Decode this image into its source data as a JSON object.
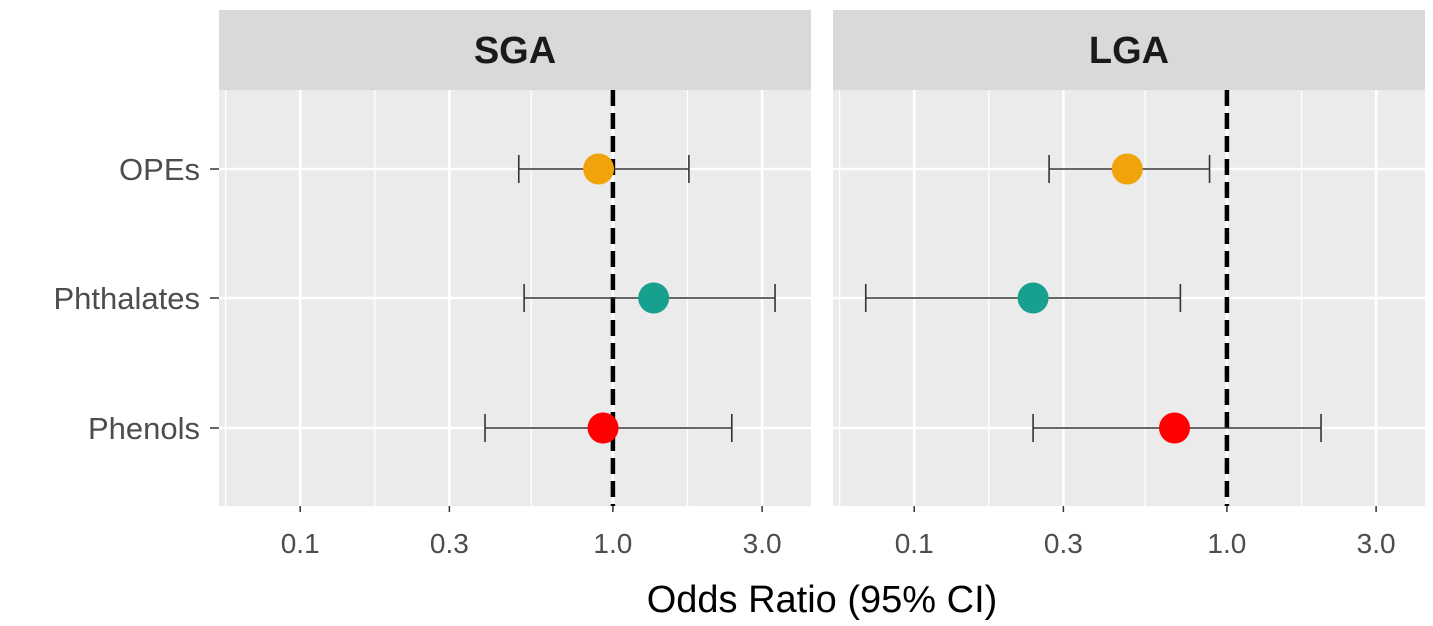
{
  "chart_data": {
    "type": "forest",
    "xlabel": "Odds Ratio (95% CI)",
    "x_scale": "log",
    "xlim": [
      0.055,
      4.3
    ],
    "x_ticks": [
      0.1,
      0.3,
      1.0,
      3.0
    ],
    "x_tick_labels": [
      "0.1",
      "0.3",
      "1.0",
      "3.0"
    ],
    "reference_line": 1.0,
    "categories": [
      "OPEs",
      "Phthalates",
      "Phenols"
    ],
    "category_colors": [
      "#f0a30a",
      "#17a08d",
      "#ff0000"
    ],
    "grid": true,
    "panels": [
      {
        "title": "SGA",
        "points": [
          {
            "category": "OPEs",
            "or": 0.9,
            "lower": 0.5,
            "upper": 1.75
          },
          {
            "category": "Phthalates",
            "or": 1.35,
            "lower": 0.52,
            "upper": 3.3
          },
          {
            "category": "Phenols",
            "or": 0.93,
            "lower": 0.39,
            "upper": 2.4
          }
        ]
      },
      {
        "title": "LGA",
        "points": [
          {
            "category": "OPEs",
            "or": 0.48,
            "lower": 0.27,
            "upper": 0.88
          },
          {
            "category": "Phthalates",
            "or": 0.24,
            "lower": 0.07,
            "upper": 0.71
          },
          {
            "category": "Phenols",
            "or": 0.68,
            "lower": 0.24,
            "upper": 2.0
          }
        ]
      }
    ]
  }
}
